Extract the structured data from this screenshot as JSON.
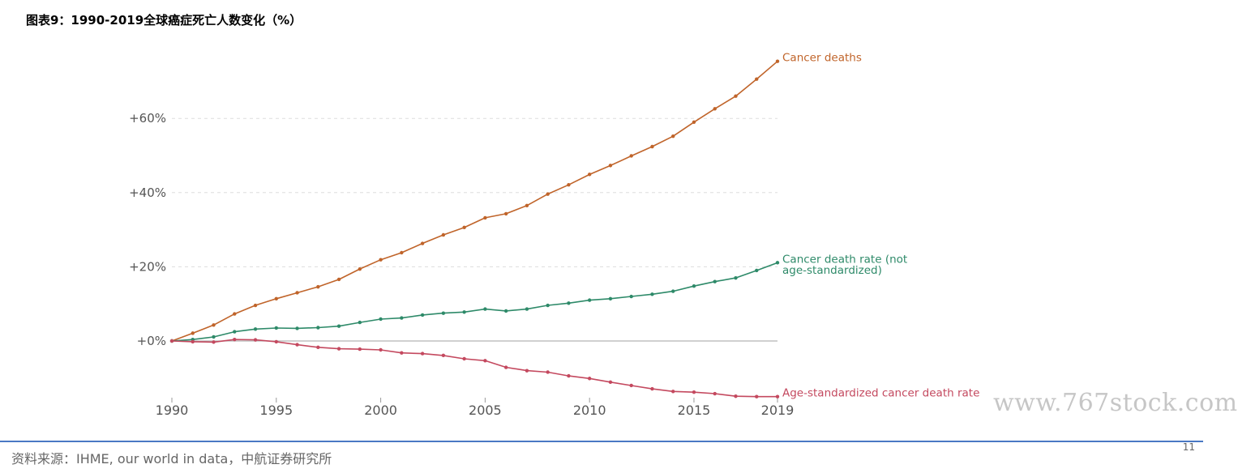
{
  "figure_title": "图表9：1990-2019全球癌症死亡人数变化（%）",
  "watermark": "www.767stock.com",
  "source_note": "资料来源：IHME, our world in data，中航证券研究所",
  "page_number": "11",
  "chart_data": {
    "type": "line",
    "xlim": [
      1990,
      2019
    ],
    "ylim": [
      -15,
      75
    ],
    "x_ticks": [
      1990,
      1995,
      2000,
      2005,
      2010,
      2015,
      2019
    ],
    "x_tick_labels": [
      "1990",
      "1995",
      "2000",
      "2005",
      "2010",
      "2015",
      "2019"
    ],
    "y_ticks": [
      0,
      20,
      40,
      60
    ],
    "y_tick_labels": [
      "+0%",
      "+20%",
      "+40%",
      "+60%"
    ],
    "grid": "horizontal dashed",
    "x": [
      1990,
      1991,
      1992,
      1993,
      1994,
      1995,
      1996,
      1997,
      1998,
      1999,
      2000,
      2001,
      2002,
      2003,
      2004,
      2005,
      2006,
      2007,
      2008,
      2009,
      2010,
      2011,
      2012,
      2013,
      2014,
      2015,
      2016,
      2017,
      2018,
      2019
    ],
    "series": [
      {
        "name": "Cancer deaths",
        "color": "#c0642a",
        "values": [
          0,
          2.1,
          4.3,
          7.3,
          9.6,
          11.4,
          13.0,
          14.6,
          16.6,
          19.4,
          21.9,
          23.8,
          26.3,
          28.6,
          30.6,
          33.2,
          34.3,
          36.5,
          39.6,
          42.1,
          44.9,
          47.3,
          49.9,
          52.4,
          55.2,
          59.0,
          62.6,
          66.0,
          70.6,
          75.4
        ]
      },
      {
        "name": "Cancer death rate (not age-standardized)",
        "label_lines": [
          "Cancer death rate (not",
          "age-standardized)"
        ],
        "color": "#2e8a69",
        "values": [
          0,
          0.4,
          1.1,
          2.5,
          3.2,
          3.5,
          3.4,
          3.6,
          4.0,
          5.0,
          5.9,
          6.2,
          7.0,
          7.5,
          7.8,
          8.6,
          8.1,
          8.6,
          9.6,
          10.2,
          11.0,
          11.4,
          12.0,
          12.6,
          13.4,
          14.8,
          16.0,
          17.0,
          19.0,
          21.1
        ]
      },
      {
        "name": "Age-standardized cancer death rate",
        "color": "#c4495f",
        "values": [
          0,
          -0.2,
          -0.3,
          0.4,
          0.3,
          -0.2,
          -1.0,
          -1.7,
          -2.1,
          -2.2,
          -2.4,
          -3.2,
          -3.4,
          -3.9,
          -4.8,
          -5.3,
          -7.1,
          -8.0,
          -8.4,
          -9.4,
          -10.1,
          -11.1,
          -12.0,
          -12.9,
          -13.6,
          -13.8,
          -14.2,
          -14.9,
          -15.0,
          -15.0
        ]
      }
    ]
  }
}
